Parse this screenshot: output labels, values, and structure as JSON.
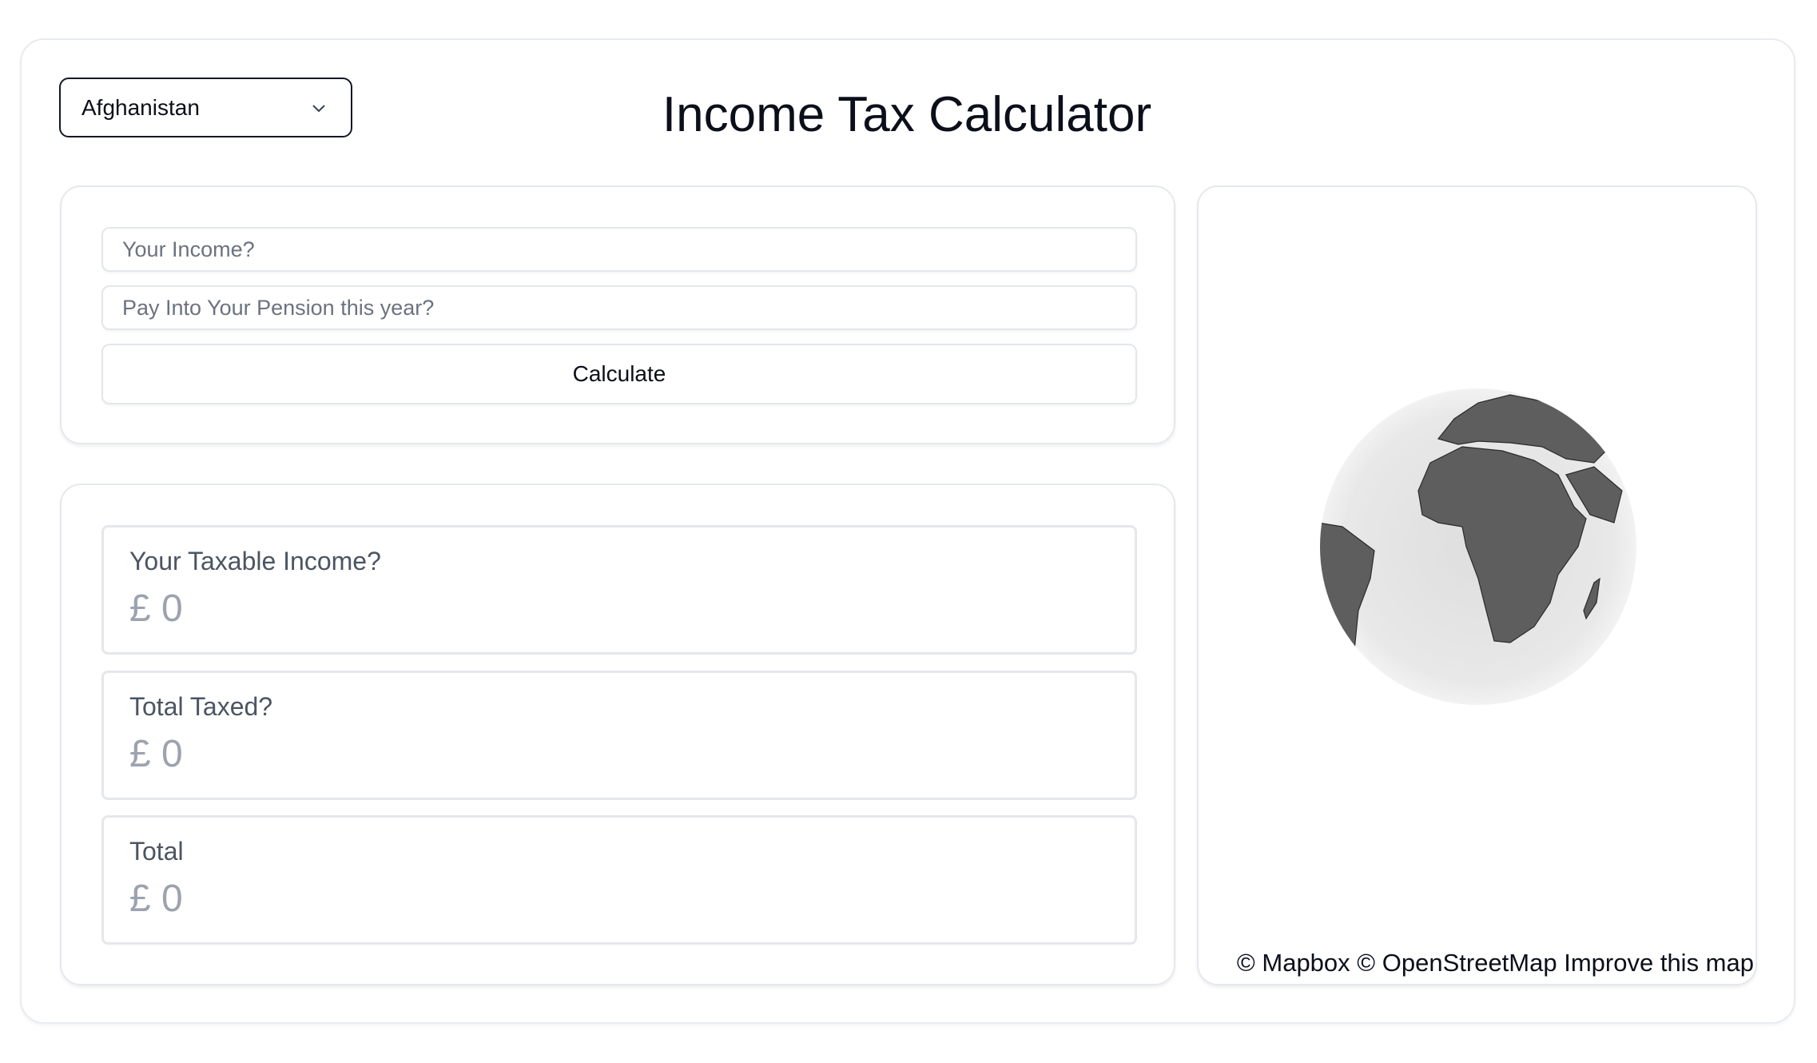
{
  "header": {
    "title": "Income Tax Calculator",
    "country_select": {
      "selected": "Afghanistan",
      "icon": "chevron-down-icon"
    }
  },
  "form": {
    "income_placeholder": "Your Income?",
    "income_value": "",
    "pension_placeholder": "Pay Into Your Pension this year?",
    "pension_value": "",
    "calculate_label": "Calculate"
  },
  "results": [
    {
      "label": "Your Taxable Income?",
      "value": "£ 0"
    },
    {
      "label": "Total Taxed?",
      "value": "£ 0"
    },
    {
      "label": "Total",
      "value": "£ 0"
    }
  ],
  "map": {
    "attribution_mapbox": "© Mapbox",
    "attribution_osm": "© OpenStreetMap",
    "improve_link": "Improve this map",
    "land_color": "#5e5e5e",
    "ocean_color": "#e6e6e6"
  }
}
